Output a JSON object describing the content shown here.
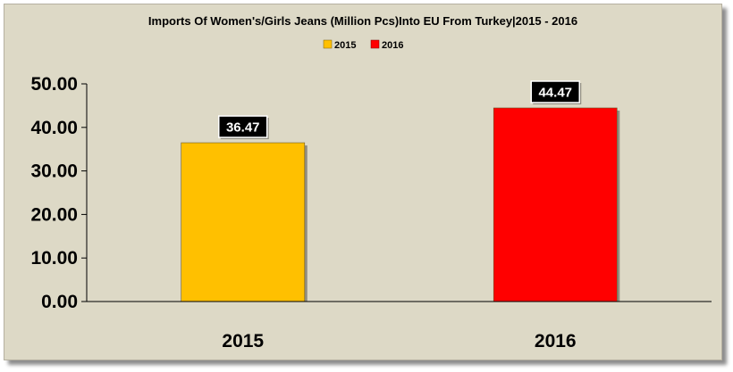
{
  "chart_data": {
    "type": "bar",
    "title": "Imports Of Women's/Girls Jeans (Million Pcs)Into EU From Turkey|2015 - 2016",
    "categories": [
      "2015",
      "2016"
    ],
    "values": [
      36.47,
      44.47
    ],
    "data_labels": [
      "36.47",
      "44.47"
    ],
    "bar_colors": [
      "#ffc000",
      "#ff0000"
    ],
    "legend": {
      "position": "top",
      "entries": [
        {
          "label": "2015",
          "color": "#ffc000"
        },
        {
          "label": "2016",
          "color": "#ff0000"
        }
      ]
    },
    "ylim": [
      0,
      50
    ],
    "yticks": [
      "0.00",
      "10.00",
      "20.00",
      "30.00",
      "40.00",
      "50.00"
    ],
    "ytick_values": [
      0,
      10,
      20,
      30,
      40,
      50
    ],
    "grid": false,
    "background_color": "#ddd9c6",
    "xlabel": "",
    "ylabel": ""
  }
}
